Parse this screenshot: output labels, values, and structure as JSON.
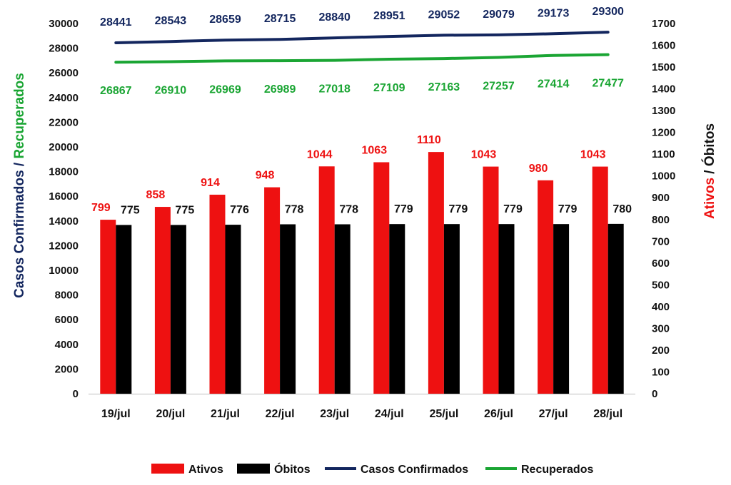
{
  "chart_data": {
    "type": "bar",
    "categories": [
      "19/jul",
      "20/jul",
      "21/jul",
      "22/jul",
      "23/jul",
      "24/jul",
      "25/jul",
      "26/jul",
      "27/jul",
      "28/jul"
    ],
    "series": [
      {
        "name": "Ativos",
        "type": "bar",
        "axis": "right",
        "color": "#ee1111",
        "values": [
          799,
          858,
          914,
          948,
          1044,
          1063,
          1110,
          1043,
          980,
          1043
        ]
      },
      {
        "name": "Óbitos",
        "type": "bar",
        "axis": "right",
        "color": "#000000",
        "values": [
          775,
          775,
          776,
          778,
          778,
          779,
          779,
          779,
          779,
          780
        ]
      },
      {
        "name": "Casos Confirmados",
        "type": "line",
        "axis": "left",
        "color": "#13265e",
        "values": [
          28441,
          28543,
          28659,
          28715,
          28840,
          28951,
          29052,
          29079,
          29173,
          29300
        ]
      },
      {
        "name": "Recuperados",
        "type": "line",
        "axis": "left",
        "color": "#1aa533",
        "values": [
          26867,
          26910,
          26969,
          26989,
          27018,
          27109,
          27163,
          27257,
          27414,
          27477
        ]
      }
    ],
    "y_left": {
      "range": [
        0,
        30000
      ],
      "ticks": [
        "0",
        "2000",
        "4000",
        "6000",
        "8000",
        "10000",
        "12000",
        "14000",
        "16000",
        "18000",
        "20000",
        "22000",
        "24000",
        "26000",
        "28000",
        "30000"
      ],
      "label_parts": [
        {
          "text": "Casos Confirmados",
          "color": "#13265e"
        },
        {
          "text": " / ",
          "color": "#13265e"
        },
        {
          "text": "Recuperados",
          "color": "#1aa533"
        }
      ]
    },
    "y_right": {
      "range": [
        0,
        1700
      ],
      "ticks": [
        "0",
        "100",
        "200",
        "300",
        "400",
        "500",
        "600",
        "700",
        "800",
        "900",
        "1000",
        "1100",
        "1200",
        "1300",
        "1400",
        "1500",
        "1600",
        "1700"
      ],
      "label_parts": [
        {
          "text": "Ativos",
          "color": "#ee1111"
        },
        {
          "text": " / ",
          "color": "#111111"
        },
        {
          "text": "Óbitos",
          "color": "#111111"
        }
      ]
    },
    "legend": {
      "position": "bottom",
      "items": [
        {
          "label": "Ativos",
          "color": "#ee1111",
          "marker": "rect"
        },
        {
          "label": "Óbitos",
          "color": "#000000",
          "marker": "rect"
        },
        {
          "label": "Casos Confirmados",
          "color": "#13265e",
          "marker": "line"
        },
        {
          "label": "Recuperados",
          "color": "#1aa533",
          "marker": "line"
        }
      ]
    },
    "grid": false
  }
}
